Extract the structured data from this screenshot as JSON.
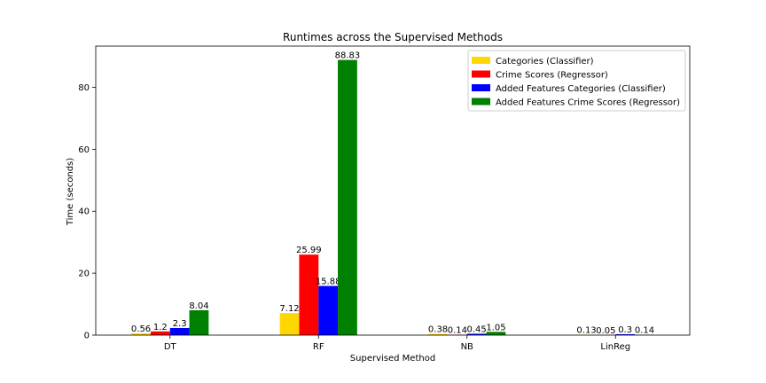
{
  "chart_data": {
    "type": "bar",
    "title": "Runtimes across the Supervised Methods",
    "xlabel": "Supervised Method",
    "ylabel": "Time (seconds)",
    "categories": [
      "DT",
      "RF",
      "NB",
      "LinReg"
    ],
    "ylim": [
      0,
      93.3
    ],
    "yticks": [
      0,
      20,
      40,
      60,
      80
    ],
    "grid": false,
    "legend_position": "top-right",
    "series": [
      {
        "name": "Categories (Classifier)",
        "color": "#ffd700",
        "values": [
          0.56,
          7.12,
          0.38,
          0.13
        ],
        "labels": [
          "0.56",
          "7.12",
          "0.38",
          "0.13"
        ]
      },
      {
        "name": "Crime Scores (Regressor)",
        "color": "#ff0000",
        "values": [
          1.2,
          25.99,
          0.14,
          0.05
        ],
        "labels": [
          "1.2",
          "25.99",
          "0.14",
          "0.05"
        ]
      },
      {
        "name": "Added Features Categories (Classifier)",
        "color": "#0000ff",
        "values": [
          2.3,
          15.88,
          0.45,
          0.3
        ],
        "labels": [
          "2.3",
          "15.88",
          "0.45",
          "0.3"
        ]
      },
      {
        "name": "Added Features Crime Scores (Regressor)",
        "color": "#008000",
        "values": [
          8.04,
          88.83,
          1.05,
          0.14
        ],
        "labels": [
          "8.04",
          "88.83",
          "1.05",
          "0.14"
        ]
      }
    ]
  }
}
